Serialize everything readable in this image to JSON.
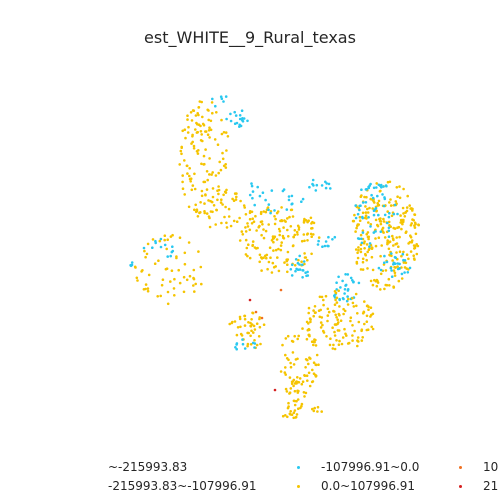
{
  "title": "est_WHITE__9_Rural_texas",
  "colors": {
    "c1": "#3b4cc0",
    "c2": "#f5c400",
    "c3": "#29c8f0",
    "c4": "#f5c400",
    "c5": "#f07020",
    "c6": "#d62020"
  },
  "legend": {
    "items": [
      {
        "label": "~-215993.83",
        "color_key": "c1"
      },
      {
        "label": "-215993.83~-107996.91",
        "color_key": "c2"
      },
      {
        "label": "-107996.91~0.0",
        "color_key": "c3"
      },
      {
        "label": "0.0~107996.91",
        "color_key": "c4"
      },
      {
        "label": "10",
        "color_key": "c5"
      },
      {
        "label": "21",
        "color_key": "c6"
      }
    ]
  }
}
